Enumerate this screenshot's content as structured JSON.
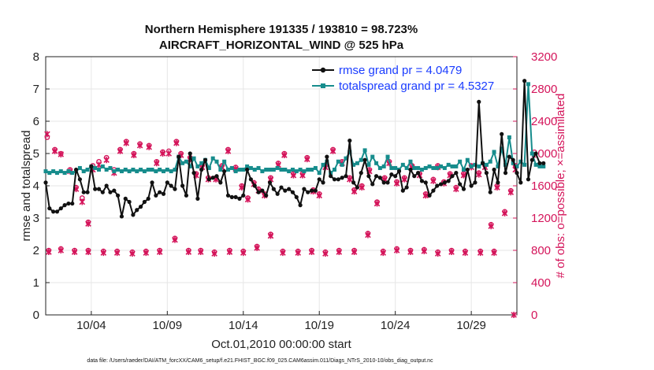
{
  "chart_data": {
    "type": "line",
    "title_line1": "Northern Hemisphere 191335 / 193810 = 98.723%",
    "title_line2": "AIRCRAFT_HORIZONTAL_WIND @ 525 hPa",
    "ylabel": "rmse and totalspread",
    "ylabel_right": "# of obs: o=possible; ×=assimilated",
    "xlabel": "Oct.01,2010 00:00:00 start",
    "footnote": "data file: /Users/raeder/DAI/ATM_forcXX/CAM6_setup/f.e21.FHIST_BGC.f09_025.CAM6assim.011/Diags_NTrS_2010-10/obs_diag_output.nc",
    "xlim": [
      1.0,
      32.0
    ],
    "ylim": [
      0,
      8
    ],
    "ylim_right": [
      0,
      3200
    ],
    "yticks": [
      "0",
      "1",
      "2",
      "3",
      "4",
      "5",
      "6",
      "7",
      "8"
    ],
    "yticks_right": [
      "0",
      "400",
      "800",
      "1200",
      "1600",
      "2000",
      "2400",
      "2800",
      "3200"
    ],
    "xticks": [
      {
        "x": 4,
        "label": "10/04"
      },
      {
        "x": 9,
        "label": "10/09"
      },
      {
        "x": 14,
        "label": "10/14"
      },
      {
        "x": 19,
        "label": "10/19"
      },
      {
        "x": 24,
        "label": "10/24"
      },
      {
        "x": 29,
        "label": "10/29"
      }
    ],
    "legend": [
      {
        "name": "rmse",
        "label": "rmse grand pr = 4.0479",
        "color": "#111111"
      },
      {
        "name": "totalspread",
        "label": "totalspread grand pr = 4.5327",
        "color": "#168c8c"
      }
    ],
    "series": [
      {
        "name": "rmse",
        "color": "#111111",
        "x_start": 1.0,
        "dx": 0.25,
        "values": [
          4.1,
          3.3,
          3.2,
          3.2,
          3.3,
          3.4,
          3.45,
          3.45,
          4.5,
          4.2,
          3.8,
          3.8,
          4.6,
          3.9,
          3.9,
          3.8,
          4.0,
          3.8,
          3.85,
          3.7,
          3.05,
          3.6,
          3.5,
          3.1,
          3.25,
          3.35,
          3.5,
          3.6,
          4.1,
          3.7,
          3.8,
          3.75,
          4.1,
          4.0,
          3.9,
          4.9,
          4.0,
          3.7,
          5.0,
          4.4,
          3.6,
          4.5,
          4.8,
          4.2,
          4.25,
          4.3,
          4.1,
          4.45,
          3.7,
          3.65,
          3.65,
          3.6,
          3.7,
          4.5,
          4.2,
          4.0,
          3.8,
          3.85,
          3.7,
          4.1,
          3.9,
          3.75,
          3.95,
          3.85,
          3.9,
          3.8,
          3.65,
          3.4,
          3.9,
          3.8,
          3.85,
          3.85,
          4.2,
          4.1,
          4.9,
          4.3,
          4.2,
          4.2,
          4.25,
          4.3,
          5.4,
          4.1,
          3.95,
          4.4,
          4.8,
          4.3,
          4.05,
          4.3,
          4.25,
          4.1,
          4.1,
          4.35,
          4.3,
          4.45,
          3.85,
          3.95,
          4.5,
          4.3,
          4.4,
          4.15,
          4.1,
          3.7,
          3.85,
          4.0,
          4.05,
          4.1,
          4.15,
          4.3,
          4.4,
          4.05,
          3.9,
          4.5,
          4.0,
          4.1,
          6.6,
          4.7,
          4.4,
          3.8,
          4.5,
          4.1,
          5.6,
          4.4,
          4.9,
          4.8,
          4.4,
          4.1,
          7.25,
          4.2,
          4.8,
          5.0,
          4.7,
          4.7
        ]
      },
      {
        "name": "totalspread",
        "color": "#168c8c",
        "x_start": 1.0,
        "dx": 0.25,
        "values": [
          4.45,
          4.4,
          4.45,
          4.4,
          4.45,
          4.4,
          4.45,
          4.4,
          4.45,
          4.55,
          4.45,
          4.5,
          4.6,
          4.55,
          4.5,
          4.6,
          4.5,
          4.55,
          4.45,
          4.5,
          4.45,
          4.5,
          4.45,
          4.5,
          4.45,
          4.5,
          4.45,
          4.5,
          4.5,
          4.45,
          4.5,
          4.45,
          4.5,
          4.45,
          4.5,
          4.9,
          4.7,
          4.75,
          4.6,
          4.85,
          4.6,
          4.7,
          4.8,
          4.55,
          4.85,
          4.75,
          4.5,
          4.75,
          4.5,
          4.55,
          4.45,
          4.5,
          4.5,
          4.6,
          4.55,
          4.5,
          4.55,
          4.45,
          4.5,
          4.5,
          4.5,
          4.55,
          4.5,
          4.5,
          4.45,
          4.5,
          4.45,
          4.5,
          4.45,
          4.5,
          4.5,
          4.55,
          4.4,
          4.65,
          4.75,
          4.4,
          4.5,
          4.75,
          4.65,
          4.85,
          5.05,
          4.65,
          4.7,
          4.8,
          5.1,
          4.65,
          4.9,
          4.7,
          4.55,
          4.6,
          4.9,
          4.55,
          4.55,
          4.5,
          4.65,
          4.55,
          4.75,
          4.55,
          4.55,
          4.5,
          4.55,
          4.6,
          4.55,
          4.55,
          4.6,
          4.55,
          4.65,
          4.6,
          4.6,
          4.75,
          4.5,
          4.8,
          4.6,
          4.65,
          4.6,
          4.7,
          4.65,
          4.75,
          5.05,
          4.6,
          5.15,
          4.65,
          5.5,
          4.7,
          4.6,
          4.75,
          4.65,
          7.15,
          5.0,
          4.65,
          4.6,
          4.6
        ]
      }
    ],
    "obs_counts": [
      {
        "name": "possible",
        "marker": "o",
        "color": "#d4145a",
        "points": [
          [
            1.1,
            2200
          ],
          [
            1.6,
            2050
          ],
          [
            2.0,
            2000
          ],
          [
            2.6,
            1800
          ],
          [
            3.0,
            1580
          ],
          [
            3.4,
            1450
          ],
          [
            3.8,
            1150
          ],
          [
            4.1,
            1850
          ],
          [
            4.5,
            1900
          ],
          [
            5.0,
            1950
          ],
          [
            5.5,
            1800
          ],
          [
            5.9,
            2050
          ],
          [
            6.3,
            2150
          ],
          [
            6.8,
            2000
          ],
          [
            7.2,
            2120
          ],
          [
            7.8,
            2100
          ],
          [
            8.3,
            1900
          ],
          [
            8.7,
            2020
          ],
          [
            9.1,
            2030
          ],
          [
            9.6,
            2150
          ],
          [
            9.9,
            2000
          ],
          [
            10.5,
            1950
          ],
          [
            10.9,
            1750
          ],
          [
            11.3,
            1850
          ],
          [
            11.7,
            1700
          ],
          [
            12.2,
            1700
          ],
          [
            12.6,
            1850
          ],
          [
            13.0,
            2050
          ],
          [
            13.5,
            1830
          ],
          [
            13.9,
            1600
          ],
          [
            14.3,
            1450
          ],
          [
            14.7,
            1640
          ],
          [
            15.0,
            1560
          ],
          [
            15.4,
            1500
          ],
          [
            15.8,
            1700
          ],
          [
            16.3,
            1880
          ],
          [
            16.7,
            2000
          ],
          [
            17.3,
            1750
          ],
          [
            17.9,
            1750
          ],
          [
            18.2,
            1950
          ],
          [
            18.6,
            1550
          ],
          [
            19.0,
            1500
          ],
          [
            19.4,
            1850
          ],
          [
            19.9,
            2050
          ],
          [
            20.5,
            1900
          ],
          [
            21.0,
            1700
          ],
          [
            21.3,
            1550
          ],
          [
            21.8,
            1600
          ],
          [
            22.3,
            1800
          ],
          [
            22.8,
            1400
          ],
          [
            23.3,
            1700
          ],
          [
            23.6,
            1900
          ],
          [
            24.1,
            1650
          ],
          [
            24.6,
            1700
          ],
          [
            25.1,
            1850
          ],
          [
            25.6,
            1750
          ],
          [
            26.0,
            1500
          ],
          [
            26.5,
            1680
          ],
          [
            26.8,
            1850
          ],
          [
            27.2,
            1650
          ],
          [
            27.6,
            1750
          ],
          [
            28.0,
            1580
          ],
          [
            28.5,
            1750
          ],
          [
            29.0,
            1850
          ],
          [
            29.5,
            1760
          ],
          [
            29.9,
            1850
          ],
          [
            30.3,
            1120
          ],
          [
            30.7,
            1600
          ],
          [
            31.2,
            1280
          ],
          [
            31.6,
            1540
          ],
          [
            31.9,
            1850
          ],
          [
            1.2,
            800
          ],
          [
            2.0,
            820
          ],
          [
            2.9,
            800
          ],
          [
            3.8,
            800
          ],
          [
            4.8,
            790
          ],
          [
            5.7,
            790
          ],
          [
            6.7,
            780
          ],
          [
            7.6,
            790
          ],
          [
            8.5,
            800
          ],
          [
            9.5,
            950
          ],
          [
            10.4,
            800
          ],
          [
            11.2,
            800
          ],
          [
            12.1,
            780
          ],
          [
            13.1,
            800
          ],
          [
            14.0,
            790
          ],
          [
            14.9,
            850
          ],
          [
            15.8,
            1000
          ],
          [
            16.6,
            790
          ],
          [
            17.6,
            790
          ],
          [
            18.5,
            800
          ],
          [
            19.4,
            780
          ],
          [
            20.3,
            800
          ],
          [
            21.3,
            800
          ],
          [
            22.2,
            1010
          ],
          [
            23.2,
            790
          ],
          [
            24.1,
            820
          ],
          [
            25.0,
            800
          ],
          [
            25.9,
            810
          ],
          [
            26.8,
            780
          ],
          [
            27.7,
            800
          ],
          [
            28.6,
            790
          ],
          [
            29.6,
            790
          ],
          [
            30.5,
            790
          ]
        ]
      },
      {
        "name": "assimilated",
        "marker": "x",
        "color": "#d4145a",
        "points": [
          [
            1.1,
            2240
          ],
          [
            1.6,
            2030
          ],
          [
            2.0,
            1990
          ],
          [
            2.6,
            1780
          ],
          [
            3.0,
            1560
          ],
          [
            3.4,
            1400
          ],
          [
            3.8,
            1130
          ],
          [
            4.1,
            1800
          ],
          [
            4.5,
            1860
          ],
          [
            5.0,
            1920
          ],
          [
            5.5,
            1760
          ],
          [
            5.9,
            2030
          ],
          [
            6.3,
            2130
          ],
          [
            6.8,
            1980
          ],
          [
            7.2,
            2100
          ],
          [
            7.8,
            2080
          ],
          [
            8.3,
            1880
          ],
          [
            8.7,
            2000
          ],
          [
            9.1,
            2000
          ],
          [
            9.6,
            2130
          ],
          [
            9.9,
            1980
          ],
          [
            10.5,
            1930
          ],
          [
            10.9,
            1730
          ],
          [
            11.3,
            1830
          ],
          [
            11.7,
            1680
          ],
          [
            12.2,
            1680
          ],
          [
            12.6,
            1830
          ],
          [
            13.0,
            2030
          ],
          [
            13.5,
            1810
          ],
          [
            13.9,
            1580
          ],
          [
            14.3,
            1430
          ],
          [
            14.7,
            1620
          ],
          [
            15.0,
            1540
          ],
          [
            15.4,
            1480
          ],
          [
            15.8,
            1680
          ],
          [
            16.3,
            1860
          ],
          [
            16.7,
            1980
          ],
          [
            17.3,
            1730
          ],
          [
            17.9,
            1730
          ],
          [
            18.2,
            1930
          ],
          [
            18.6,
            1530
          ],
          [
            19.0,
            1480
          ],
          [
            19.4,
            1830
          ],
          [
            19.9,
            2030
          ],
          [
            20.5,
            1880
          ],
          [
            21.0,
            1680
          ],
          [
            21.3,
            1530
          ],
          [
            21.8,
            1580
          ],
          [
            22.3,
            1780
          ],
          [
            22.8,
            1380
          ],
          [
            23.3,
            1680
          ],
          [
            23.6,
            1880
          ],
          [
            24.1,
            1630
          ],
          [
            24.6,
            1680
          ],
          [
            25.1,
            1830
          ],
          [
            25.6,
            1730
          ],
          [
            26.0,
            1480
          ],
          [
            26.5,
            1660
          ],
          [
            26.8,
            1830
          ],
          [
            27.2,
            1630
          ],
          [
            27.6,
            1730
          ],
          [
            28.0,
            1560
          ],
          [
            28.5,
            1730
          ],
          [
            29.0,
            1830
          ],
          [
            29.5,
            1740
          ],
          [
            29.9,
            1830
          ],
          [
            30.3,
            1100
          ],
          [
            30.7,
            1580
          ],
          [
            31.2,
            1260
          ],
          [
            31.6,
            1520
          ],
          [
            31.9,
            1800
          ],
          [
            1.2,
            780
          ],
          [
            2.0,
            800
          ],
          [
            2.9,
            780
          ],
          [
            3.8,
            780
          ],
          [
            4.8,
            770
          ],
          [
            5.7,
            770
          ],
          [
            6.7,
            760
          ],
          [
            7.6,
            770
          ],
          [
            8.5,
            780
          ],
          [
            9.5,
            930
          ],
          [
            10.4,
            780
          ],
          [
            11.2,
            780
          ],
          [
            12.1,
            760
          ],
          [
            13.1,
            780
          ],
          [
            14.0,
            770
          ],
          [
            14.9,
            830
          ],
          [
            15.8,
            980
          ],
          [
            16.6,
            770
          ],
          [
            17.6,
            770
          ],
          [
            18.5,
            780
          ],
          [
            19.4,
            760
          ],
          [
            20.3,
            780
          ],
          [
            21.3,
            780
          ],
          [
            22.2,
            990
          ],
          [
            23.2,
            770
          ],
          [
            24.1,
            800
          ],
          [
            25.0,
            780
          ],
          [
            25.9,
            790
          ],
          [
            26.8,
            760
          ],
          [
            27.7,
            780
          ],
          [
            28.6,
            770
          ],
          [
            29.6,
            770
          ],
          [
            30.5,
            770
          ],
          [
            31.8,
            0
          ]
        ]
      }
    ]
  }
}
